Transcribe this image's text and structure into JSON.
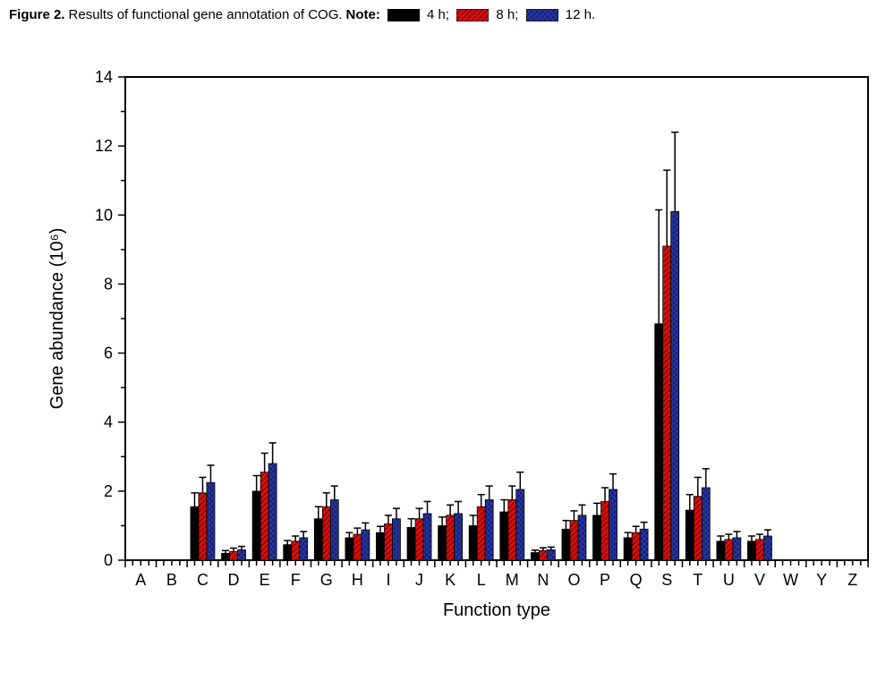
{
  "caption": {
    "fig_label": "Figure 2.",
    "title_rest": " Results of functional gene annotation of COG. ",
    "note_label": "Note:",
    "series": [
      {
        "key": "4h",
        "label": "4 h;",
        "color": "#000000",
        "hatch": null,
        "hatch_color": null
      },
      {
        "key": "8h",
        "label": "8 h;",
        "color": "#ff0000",
        "hatch": "diag",
        "hatch_color": "#252525"
      },
      {
        "key": "12h",
        "label": "12 h.",
        "color": "#0019d6",
        "hatch": "cross",
        "hatch_color": "#404040"
      }
    ]
  },
  "chart": {
    "type": "bar",
    "ylabel": "Gene abundance (10⁶)",
    "xlabel": "Function type",
    "ylim": [
      0,
      14
    ],
    "ytick_step": 2,
    "background_color": "#ffffff",
    "bar_width": 0.26,
    "categories": [
      "A",
      "B",
      "C",
      "D",
      "E",
      "F",
      "G",
      "H",
      "I",
      "J",
      "K",
      "L",
      "M",
      "N",
      "O",
      "P",
      "Q",
      "S",
      "T",
      "U",
      "V",
      "W",
      "Y",
      "Z"
    ],
    "series": {
      "4h": [
        0,
        0,
        1.55,
        0.2,
        2.0,
        0.45,
        1.2,
        0.65,
        0.8,
        0.95,
        1.0,
        1.0,
        1.4,
        0.22,
        0.9,
        1.3,
        0.65,
        6.85,
        1.45,
        0.55,
        0.55,
        0,
        0,
        0
      ],
      "8h": [
        0,
        0,
        1.95,
        0.25,
        2.55,
        0.55,
        1.55,
        0.75,
        1.05,
        1.2,
        1.3,
        1.55,
        1.75,
        0.28,
        1.15,
        1.7,
        0.8,
        9.1,
        1.85,
        0.6,
        0.6,
        0,
        0,
        0
      ],
      "12h": [
        0,
        0,
        2.25,
        0.3,
        2.8,
        0.65,
        1.75,
        0.88,
        1.2,
        1.35,
        1.35,
        1.75,
        2.05,
        0.3,
        1.3,
        2.05,
        0.9,
        10.1,
        2.1,
        0.65,
        0.7,
        0,
        0,
        0
      ]
    },
    "errors": {
      "4h": [
        0,
        0,
        0.4,
        0.08,
        0.45,
        0.12,
        0.35,
        0.15,
        0.18,
        0.25,
        0.25,
        0.3,
        0.35,
        0.07,
        0.25,
        0.35,
        0.15,
        3.3,
        0.45,
        0.15,
        0.15,
        0,
        0,
        0
      ],
      "8h": [
        0,
        0,
        0.45,
        0.1,
        0.55,
        0.15,
        0.4,
        0.18,
        0.25,
        0.3,
        0.3,
        0.35,
        0.4,
        0.08,
        0.28,
        0.4,
        0.18,
        2.2,
        0.55,
        0.15,
        0.15,
        0,
        0,
        0
      ],
      "12h": [
        0,
        0,
        0.5,
        0.1,
        0.6,
        0.18,
        0.4,
        0.2,
        0.3,
        0.35,
        0.35,
        0.4,
        0.5,
        0.08,
        0.3,
        0.45,
        0.2,
        2.3,
        0.55,
        0.18,
        0.18,
        0,
        0,
        0
      ]
    },
    "axis_title_fontsize": 20,
    "tick_fontsize": 18
  }
}
